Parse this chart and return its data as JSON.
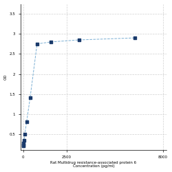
{
  "x": [
    6.25,
    12.5,
    25,
    50,
    100,
    200,
    400,
    800,
    1600,
    3200,
    6400
  ],
  "y": [
    0.2,
    0.22,
    0.27,
    0.35,
    0.5,
    0.8,
    1.4,
    2.75,
    2.8,
    2.85,
    2.9
  ],
  "line_color": "#7bafd4",
  "marker_color": "#1a3a6b",
  "xlabel_line1": "Rat Multidrug resistance-associated protein 6",
  "xlabel_line2": "Concentration (pg/ml)",
  "ylabel": "OD",
  "xtick_positions": [
    0,
    2500,
    8000
  ],
  "xtick_labels": [
    "0",
    "2500",
    "8000"
  ],
  "ytick_positions": [
    0.5,
    1.0,
    1.5,
    2.0,
    2.5,
    3.0,
    3.5
  ],
  "ytick_labels": [
    "0.5",
    "1",
    "1.5",
    "2",
    "2.5",
    "3",
    "3.5"
  ],
  "xlim": [
    -150,
    8200
  ],
  "ylim": [
    0.1,
    3.75
  ],
  "grid_color": "#d0d0d0",
  "bg_color": "#ffffff",
  "axis_fontsize": 4.0,
  "tick_fontsize": 4.0
}
